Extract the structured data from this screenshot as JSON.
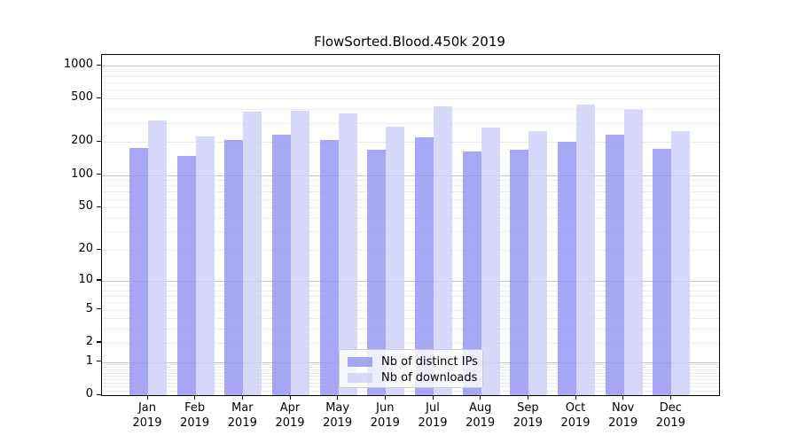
{
  "title": "FlowSorted.Blood.450k 2019",
  "legend": {
    "items": [
      {
        "label": "Nb of distinct IPs",
        "color": "#9494f3"
      },
      {
        "label": "Nb of downloads",
        "color": "#d0d0f9"
      }
    ]
  },
  "colors": {
    "bar_distinct_ips": "#9494f3",
    "bar_downloads": "#d0d0f9",
    "grid_major": "#c6c6c6",
    "grid_minor": "#ebebeb",
    "axis": "#000000",
    "background": "#ffffff"
  },
  "chart_data": {
    "type": "bar",
    "title": "FlowSorted.Blood.450k 2019",
    "categories": [
      "Jan",
      "Feb",
      "Mar",
      "Apr",
      "May",
      "Jun",
      "Jul",
      "Aug",
      "Sep",
      "Oct",
      "Nov",
      "Dec"
    ],
    "x_tick_year": "2019",
    "series": [
      {
        "name": "Nb of distinct IPs",
        "values": [
          177,
          149,
          209,
          235,
          209,
          169,
          220,
          164,
          169,
          200,
          234,
          175
        ]
      },
      {
        "name": "Nb of downloads",
        "values": [
          317,
          224,
          382,
          387,
          364,
          275,
          425,
          273,
          254,
          443,
          396,
          252
        ]
      }
    ],
    "xlabel": "",
    "ylabel": "",
    "yscale": "log1p",
    "ylim": [
      0,
      1250
    ],
    "yticks": [
      0,
      1,
      2,
      5,
      10,
      20,
      50,
      100,
      200,
      500,
      1000
    ],
    "grid": "major+minor horizontal",
    "legend_position": "inside bottom-center"
  }
}
